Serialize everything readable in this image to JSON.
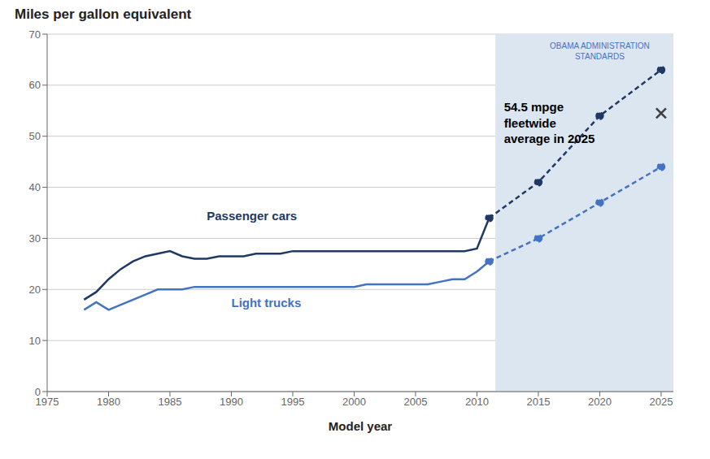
{
  "chart_data": {
    "type": "line",
    "title": "Miles per gallon equivalent",
    "x_label": "Model year",
    "xlim": [
      1975,
      2026
    ],
    "ylim": [
      0,
      70
    ],
    "xticks": [
      1975,
      1980,
      1985,
      1990,
      1995,
      2000,
      2005,
      2010,
      2015,
      2020,
      2025
    ],
    "yticks": [
      0,
      10,
      20,
      30,
      40,
      50,
      60,
      70
    ],
    "grid": true,
    "series": [
      {
        "name": "Passenger cars",
        "color": "#1f3864",
        "line_style": "solid",
        "x": [
          1978,
          1979,
          1980,
          1981,
          1982,
          1983,
          1984,
          1985,
          1986,
          1987,
          1988,
          1989,
          1990,
          1991,
          1992,
          1993,
          1994,
          1995,
          1996,
          1997,
          1998,
          1999,
          2000,
          2001,
          2002,
          2003,
          2004,
          2005,
          2006,
          2007,
          2008,
          2009,
          2010,
          2011
        ],
        "values": [
          18.0,
          19.5,
          22.0,
          24.0,
          25.5,
          26.5,
          27.0,
          27.5,
          26.5,
          26.0,
          26.0,
          26.5,
          26.5,
          26.5,
          27.0,
          27.0,
          27.0,
          27.5,
          27.5,
          27.5,
          27.5,
          27.5,
          27.5,
          27.5,
          27.5,
          27.5,
          27.5,
          27.5,
          27.5,
          27.5,
          27.5,
          27.5,
          28.0,
          34.0
        ],
        "label_x": 1988,
        "label_y": 33.5
      },
      {
        "name": "Light trucks",
        "color": "#4472c4",
        "line_style": "solid",
        "x": [
          1978,
          1979,
          1980,
          1981,
          1982,
          1983,
          1984,
          1985,
          1986,
          1987,
          1988,
          1989,
          1990,
          1991,
          1992,
          1993,
          1994,
          1995,
          1996,
          1997,
          1998,
          1999,
          2000,
          2001,
          2002,
          2003,
          2004,
          2005,
          2006,
          2007,
          2008,
          2009,
          2010,
          2011
        ],
        "values": [
          16.0,
          17.5,
          16.0,
          17.0,
          18.0,
          19.0,
          20.0,
          20.0,
          20.0,
          20.5,
          20.5,
          20.5,
          20.5,
          20.5,
          20.5,
          20.5,
          20.5,
          20.5,
          20.5,
          20.5,
          20.5,
          20.5,
          20.5,
          21.0,
          21.0,
          21.0,
          21.0,
          21.0,
          21.0,
          21.5,
          22.0,
          22.0,
          23.5,
          25.5
        ],
        "label_x": 1990,
        "label_y": 16.5
      },
      {
        "color": "#1f3864",
        "line_style": "dashed",
        "marker": "o",
        "x": [
          2011,
          2015,
          2020,
          2025
        ],
        "values": [
          34.0,
          41.0,
          54.0,
          63.0
        ]
      },
      {
        "color": "#4472c4",
        "line_style": "dashed",
        "marker": "o",
        "x": [
          2011,
          2015,
          2020,
          2025
        ],
        "values": [
          25.5,
          30.0,
          37.0,
          44.0
        ]
      },
      {
        "type": "scatter",
        "marker": "x",
        "color": "#404040",
        "x": [
          2025
        ],
        "values": [
          54.5
        ]
      }
    ],
    "shaded_region": {
      "start": 2011.5,
      "end": 2026,
      "color": "#dce6f1",
      "label": "OBAMA ADMINISTRATION\nSTANDARDS",
      "label_x": 2020,
      "label_y": 68.5,
      "label_color": "#4472c4"
    },
    "annotation": {
      "text": "54.5 mpge\nfleetwide\naverage in 2025",
      "x": 2012.2,
      "y": 57
    }
  }
}
